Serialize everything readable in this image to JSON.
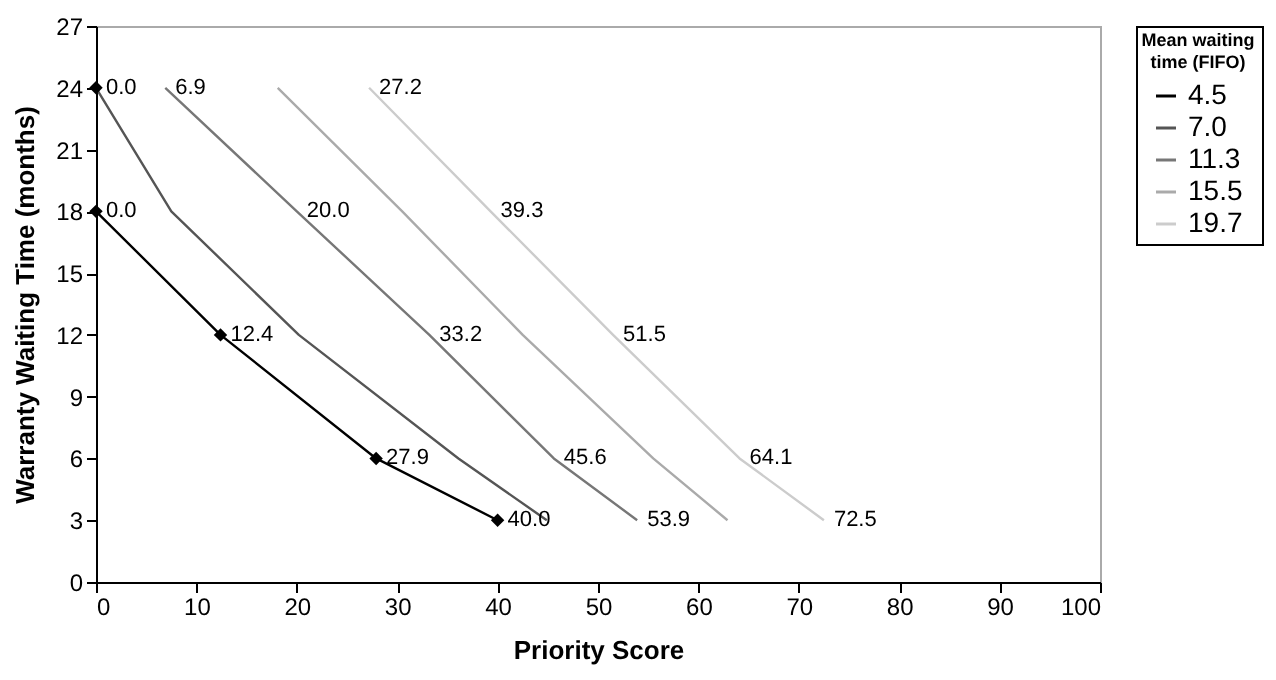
{
  "chart_data": {
    "type": "line",
    "xlabel": "Priority Score",
    "ylabel": "Warranty Waiting Time (months)",
    "legend_title": "Mean waiting time (FIFO)",
    "legend": "right",
    "xlim": [
      0,
      100
    ],
    "xticks": [
      0,
      10,
      20,
      30,
      40,
      50,
      60,
      70,
      80,
      90,
      100
    ],
    "ylim": [
      0,
      27
    ],
    "yticks": [
      0,
      3,
      6,
      9,
      12,
      15,
      18,
      21,
      24,
      27
    ],
    "series": [
      {
        "name": "4.5",
        "color": "#000000",
        "marker": "diamond",
        "x": [
          0,
          12.4,
          27.9,
          40.0
        ],
        "values": [
          18,
          12,
          6,
          3
        ]
      },
      {
        "name": "7.0",
        "color": "#555555",
        "x": [
          0,
          7.5,
          20.2,
          36.1,
          44.9
        ],
        "values": [
          24,
          18,
          12,
          6,
          3
        ]
      },
      {
        "name": "11.3",
        "color": "#777777",
        "x": [
          6.9,
          20.0,
          33.2,
          45.6,
          53.9
        ],
        "values": [
          24,
          18,
          12,
          6,
          3
        ]
      },
      {
        "name": "15.5",
        "color": "#aaaaaa",
        "x": [
          18.1,
          30.5,
          42.5,
          55.5,
          62.9
        ],
        "values": [
          24,
          18,
          12,
          6,
          3
        ]
      },
      {
        "name": "19.7",
        "color": "#cccccc",
        "x": [
          27.2,
          39.3,
          51.5,
          64.1,
          72.5
        ],
        "values": [
          24,
          18,
          12,
          6,
          3
        ]
      },
      {
        "type": "scatter",
        "color": "#000000",
        "marker": "diamond",
        "x": [
          0
        ],
        "values": [
          24
        ]
      }
    ],
    "annotations": [
      {
        "text": "0.0",
        "x": 0,
        "y": 18
      },
      {
        "text": "12.4",
        "x": 12.4,
        "y": 12
      },
      {
        "text": "27.9",
        "x": 27.9,
        "y": 6
      },
      {
        "text": "40.0",
        "x": 40.0,
        "y": 3
      },
      {
        "text": "0.0",
        "x": 0,
        "y": 24
      },
      {
        "text": "6.9",
        "x": 6.9,
        "y": 24
      },
      {
        "text": "20.0",
        "x": 20.0,
        "y": 18
      },
      {
        "text": "33.2",
        "x": 33.2,
        "y": 12
      },
      {
        "text": "45.6",
        "x": 45.6,
        "y": 6
      },
      {
        "text": "53.9",
        "x": 53.9,
        "y": 3
      },
      {
        "text": "27.2",
        "x": 27.2,
        "y": 24
      },
      {
        "text": "39.3",
        "x": 39.3,
        "y": 18
      },
      {
        "text": "51.5",
        "x": 51.5,
        "y": 12
      },
      {
        "text": "64.1",
        "x": 64.1,
        "y": 6
      },
      {
        "text": "72.5",
        "x": 72.5,
        "y": 3
      }
    ]
  }
}
